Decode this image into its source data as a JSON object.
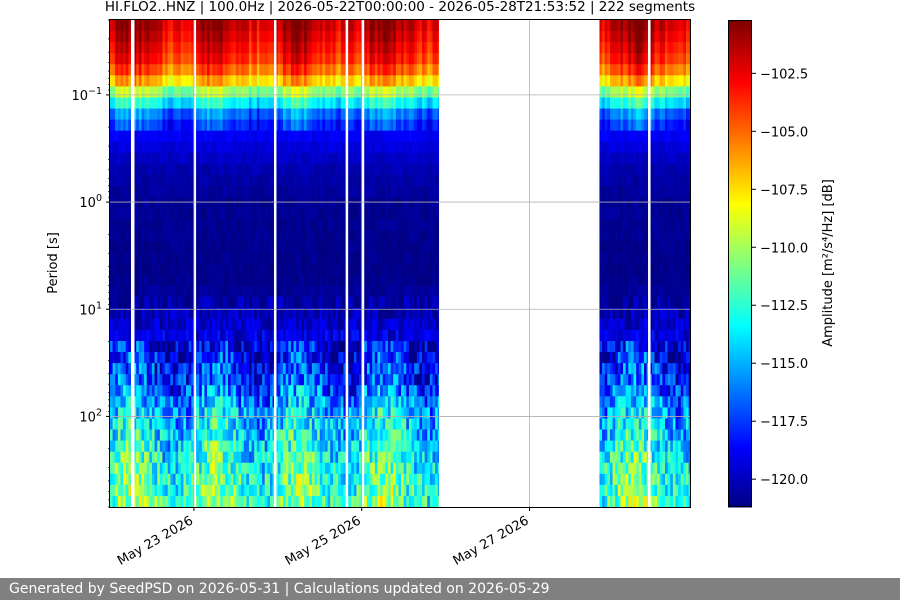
{
  "chart_data": {
    "type": "heatmap",
    "title": "HI.FLO2..HNZ | 100.0Hz | 2026-05-22T00:00:00 - 2026-05-28T21:53:52 | 222 segments",
    "xlabel": "",
    "ylabel": "Period [s]",
    "colorbar_label": "Amplitude [m²/s⁴/Hz] [dB]",
    "colormap": "jet",
    "x_range": [
      "2026-05-22T00:00:00",
      "2026-05-28T21:53:52"
    ],
    "x_ticks": [
      "May 23 2026",
      "May 25 2026",
      "May 27 2026"
    ],
    "y_scale": "log",
    "y_inverted": true,
    "y_range": [
      0.02,
      700
    ],
    "y_ticks": [
      {
        "value": 0.1,
        "base": "10",
        "exp": "−1"
      },
      {
        "value": 1,
        "base": "10",
        "exp": "0"
      },
      {
        "value": 10,
        "base": "10",
        "exp": "1"
      },
      {
        "value": 100,
        "base": "10",
        "exp": "2"
      }
    ],
    "colorbar_range": [
      -121.2,
      -100.2
    ],
    "colorbar_ticks": [
      "−102.5",
      "−105.0",
      "−107.5",
      "−110.0",
      "−112.5",
      "−115.0",
      "−117.5",
      "−120.0"
    ],
    "colorbar_tick_values": [
      -102.5,
      -105.0,
      -107.5,
      -110.0,
      -112.5,
      -115.0,
      -117.5,
      -120.0
    ],
    "grid": true,
    "data_blocks": [
      {
        "start": "2026-05-22T00:00:00",
        "end": "2026-05-25T22:00:00"
      },
      {
        "start": "2026-05-27T20:00:00",
        "end": "2026-05-28T21:53:52"
      }
    ],
    "gaps": [
      {
        "start": "2026-05-22T06:00:00",
        "end": "2026-05-22T07:00:00"
      },
      {
        "start": "2026-05-22T23:54:00",
        "end": "2026-05-23T00:06:00"
      },
      {
        "start": "2026-05-23T22:54:00",
        "end": "2026-05-23T23:06:00"
      },
      {
        "start": "2026-05-24T19:24:00",
        "end": "2026-05-24T19:36:00"
      },
      {
        "start": "2026-05-25T00:00:00",
        "end": "2026-05-25T00:24:00"
      },
      {
        "start": "2026-05-28T09:54:00",
        "end": "2026-05-28T10:06:00"
      }
    ],
    "spectrum_profile": [
      {
        "period": 0.02,
        "db": -101.0
      },
      {
        "period": 0.03,
        "db": -102.0
      },
      {
        "period": 0.05,
        "db": -103.5
      },
      {
        "period": 0.07,
        "db": -106.0
      },
      {
        "period": 0.1,
        "db": -111.0
      },
      {
        "period": 0.15,
        "db": -116.0
      },
      {
        "period": 0.25,
        "db": -119.0
      },
      {
        "period": 0.5,
        "db": -120.2
      },
      {
        "period": 1,
        "db": -120.8
      },
      {
        "period": 5,
        "db": -121.0
      },
      {
        "period": 10,
        "db": -120.3
      },
      {
        "period": 20,
        "db": -119.0
      },
      {
        "period": 50,
        "db": -117.0
      },
      {
        "period": 100,
        "db": -114.5
      },
      {
        "period": 200,
        "db": -113.0
      },
      {
        "period": 400,
        "db": -112.0
      },
      {
        "period": 700,
        "db": -111.5
      }
    ]
  },
  "footer": {
    "text": "Generated by SeedPSD on 2026-05-31 | Calculations updated on 2026-05-29"
  }
}
